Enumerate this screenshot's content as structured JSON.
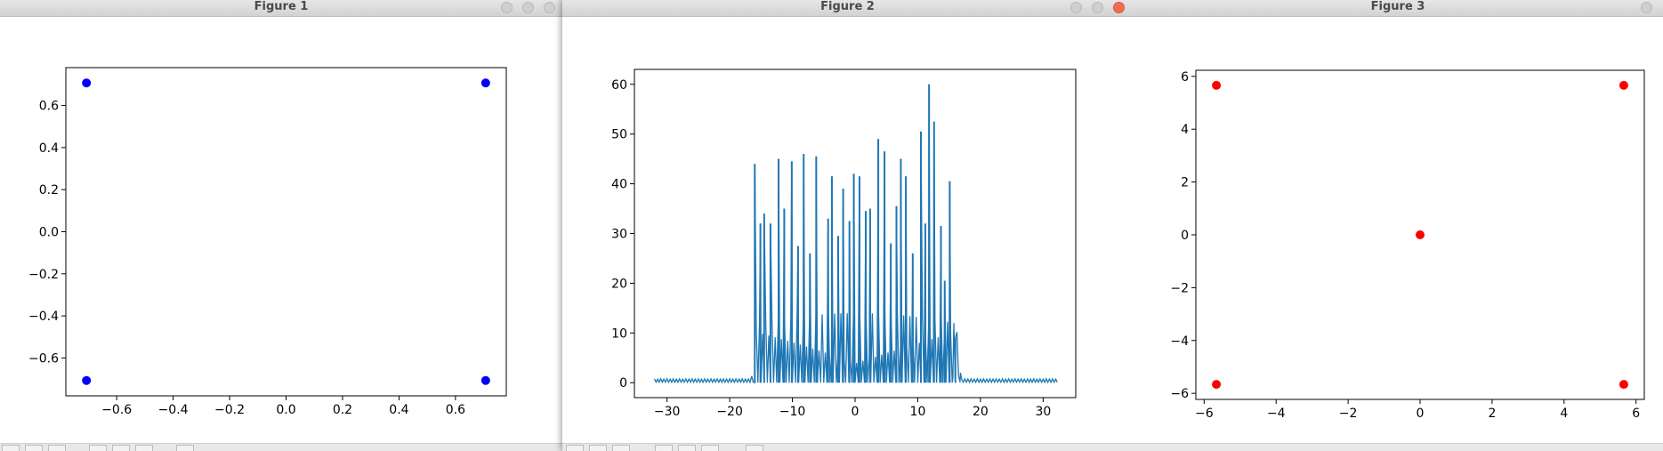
{
  "windows": [
    {
      "title": "Figure 1",
      "chart_data": {
        "type": "scatter",
        "title": "",
        "xlabel": "",
        "ylabel": "",
        "color": "#0000ff",
        "x": [
          -0.707,
          0.707,
          -0.707,
          0.707
        ],
        "y": [
          0.707,
          0.707,
          -0.707,
          -0.707
        ],
        "xlim": [
          -0.78,
          0.78
        ],
        "ylim": [
          -0.78,
          0.78
        ],
        "xticks": [
          -0.6,
          -0.4,
          -0.2,
          0.0,
          0.2,
          0.4,
          0.6
        ],
        "xtick_labels": [
          "−0.6",
          "−0.4",
          "−0.2",
          "0.0",
          "0.2",
          "0.4",
          "0.6"
        ],
        "yticks": [
          -0.6,
          -0.4,
          -0.2,
          0.0,
          0.2,
          0.4,
          0.6
        ],
        "ytick_labels": [
          "−0.6",
          "−0.4",
          "−0.2",
          "0.0",
          "0.2",
          "0.4",
          "0.6"
        ],
        "grid": false
      }
    },
    {
      "title": "Figure 2",
      "chart_data": {
        "type": "line",
        "title": "",
        "xlabel": "",
        "ylabel": "",
        "color": "#1f77b4",
        "x": [
          -32,
          32
        ],
        "xlim": [
          -35.2,
          35.2
        ],
        "ylim": [
          -3,
          63
        ],
        "xticks": [
          -30,
          -20,
          -10,
          0,
          10,
          20,
          30
        ],
        "xtick_labels": [
          "−30",
          "−20",
          "−10",
          "0",
          "10",
          "20",
          "30"
        ],
        "yticks": [
          0,
          10,
          20,
          30,
          40,
          50,
          60
        ],
        "ytick_labels": [
          "0",
          "10",
          "20",
          "30",
          "40",
          "50",
          "60"
        ],
        "grid": false,
        "peaks": [
          {
            "x": -16,
            "y": 44
          },
          {
            "x": -15.1,
            "y": 32
          },
          {
            "x": -14.5,
            "y": 34
          },
          {
            "x": -13.5,
            "y": 32
          },
          {
            "x": -12.2,
            "y": 45
          },
          {
            "x": -11.3,
            "y": 35
          },
          {
            "x": -10.1,
            "y": 44.5
          },
          {
            "x": -9.1,
            "y": 27.5
          },
          {
            "x": -8.2,
            "y": 46
          },
          {
            "x": -7.2,
            "y": 26
          },
          {
            "x": -6.2,
            "y": 45.5
          },
          {
            "x": -4.3,
            "y": 33
          },
          {
            "x": -3.7,
            "y": 41.5
          },
          {
            "x": -2.7,
            "y": 29.5
          },
          {
            "x": -1.9,
            "y": 39
          },
          {
            "x": -0.9,
            "y": 32.5
          },
          {
            "x": -0.2,
            "y": 42
          },
          {
            "x": 0.7,
            "y": 41.5
          },
          {
            "x": 1.7,
            "y": 34.5
          },
          {
            "x": 2.4,
            "y": 35
          },
          {
            "x": 3.7,
            "y": 49
          },
          {
            "x": 4.7,
            "y": 46.5
          },
          {
            "x": 5.7,
            "y": 28
          },
          {
            "x": 6.6,
            "y": 35.5
          },
          {
            "x": 7.3,
            "y": 45
          },
          {
            "x": 8.1,
            "y": 41.5
          },
          {
            "x": 9.2,
            "y": 26
          },
          {
            "x": 10.5,
            "y": 50.5
          },
          {
            "x": 11.2,
            "y": 32
          },
          {
            "x": 11.8,
            "y": 60
          },
          {
            "x": 12.6,
            "y": 52.5
          },
          {
            "x": 13.7,
            "y": 31.5
          },
          {
            "x": 14.3,
            "y": 20.5
          },
          {
            "x": 15.1,
            "y": 40.5
          },
          {
            "x": 16,
            "y": 9
          }
        ]
      }
    },
    {
      "title": "Figure 3",
      "chart_data": {
        "type": "scatter",
        "title": "",
        "xlabel": "",
        "ylabel": "",
        "color": "#ff0000",
        "x": [
          -5.66,
          5.66,
          0,
          -5.66,
          5.66
        ],
        "y": [
          5.66,
          5.66,
          0,
          -5.66,
          -5.66
        ],
        "xlim": [
          -6.23,
          6.23
        ],
        "ylim": [
          -6.23,
          6.23
        ],
        "xticks": [
          -6,
          -4,
          -2,
          0,
          2,
          4,
          6
        ],
        "xtick_labels": [
          "−6",
          "−4",
          "−2",
          "0",
          "2",
          "4",
          "6"
        ],
        "yticks": [
          -6,
          -4,
          -2,
          0,
          2,
          4,
          6
        ],
        "ytick_labels": [
          "−6",
          "−4",
          "−2",
          "0",
          "2",
          "4",
          "6"
        ],
        "grid": false
      }
    }
  ]
}
